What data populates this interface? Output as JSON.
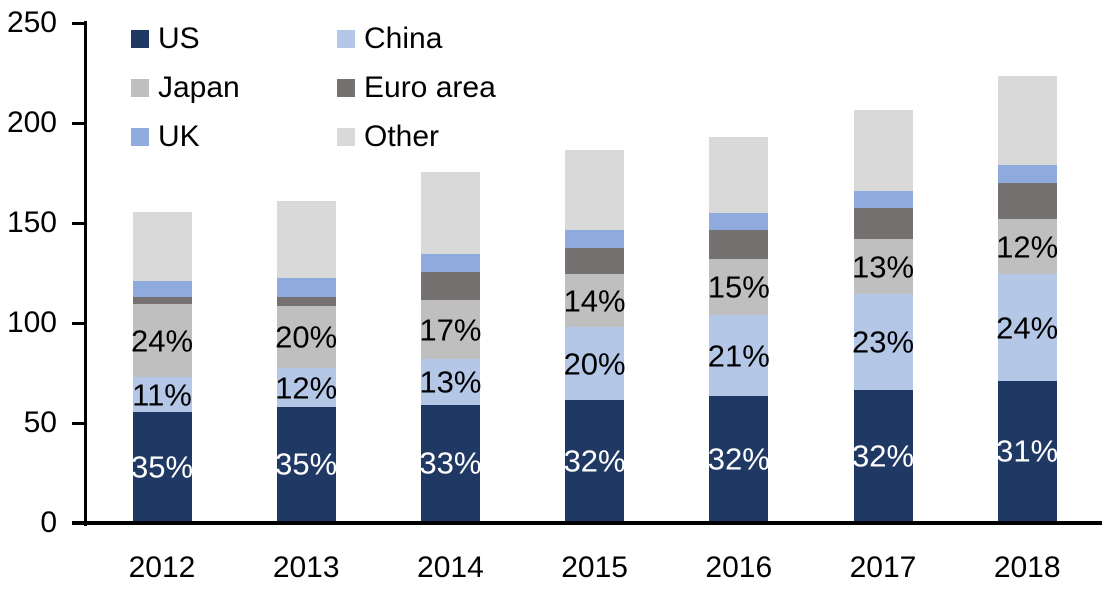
{
  "chart_data": {
    "type": "bar",
    "stacked": true,
    "title": "",
    "xlabel": "",
    "ylabel": "",
    "categories": [
      "2012",
      "2013",
      "2014",
      "2015",
      "2016",
      "2017",
      "2018"
    ],
    "series": [
      {
        "name": "US",
        "color": "#1f3864",
        "values": [
          54.5,
          57,
          58,
          60.5,
          62.5,
          65.5,
          70
        ],
        "pct_labels": [
          "35%",
          "35%",
          "33%",
          "32%",
          "32%",
          "32%",
          "31%"
        ],
        "label_color": "#ffffff"
      },
      {
        "name": "China",
        "color": "#b4c7e7",
        "values": [
          17.5,
          19.5,
          23,
          36.5,
          40.5,
          48,
          53.5
        ],
        "pct_labels": [
          "11%",
          "12%",
          "13%",
          "20%",
          "21%",
          "23%",
          "24%"
        ],
        "label_color": "#000000"
      },
      {
        "name": "Japan",
        "color": "#bfbfbf",
        "values": [
          36.5,
          31,
          29.5,
          26.5,
          28,
          27.5,
          27.5
        ],
        "pct_labels": [
          "24%",
          "20%",
          "17%",
          "14%",
          "15%",
          "13%",
          "12%"
        ],
        "label_color": "#000000"
      },
      {
        "name": "Euro area",
        "color": "#767171",
        "values": [
          3.5,
          4.5,
          14,
          13,
          14.5,
          15.5,
          18
        ],
        "pct_labels": null,
        "label_color": null
      },
      {
        "name": "UK",
        "color": "#8faadc",
        "values": [
          8,
          9.5,
          9,
          9,
          8.5,
          8.5,
          9
        ],
        "pct_labels": null,
        "label_color": null
      },
      {
        "name": "Other",
        "color": "#d9d9d9",
        "values": [
          34.5,
          38.5,
          41,
          40,
          38,
          40.5,
          44.5
        ],
        "pct_labels": null,
        "label_color": null
      }
    ],
    "totals": [
      154.5,
      160,
      174.5,
      185.5,
      192,
      205.5,
      223
    ],
    "y_axis": {
      "min": 0,
      "max": 250,
      "ticks": [
        0,
        50,
        100,
        150,
        200,
        250
      ]
    },
    "grid": false,
    "legend_position": "top-left",
    "legend_columns": [
      [
        "US",
        "Japan",
        "UK"
      ],
      [
        "China",
        "Euro area",
        "Other"
      ]
    ],
    "axis_color": "#000000",
    "background_color": "#ffffff"
  }
}
